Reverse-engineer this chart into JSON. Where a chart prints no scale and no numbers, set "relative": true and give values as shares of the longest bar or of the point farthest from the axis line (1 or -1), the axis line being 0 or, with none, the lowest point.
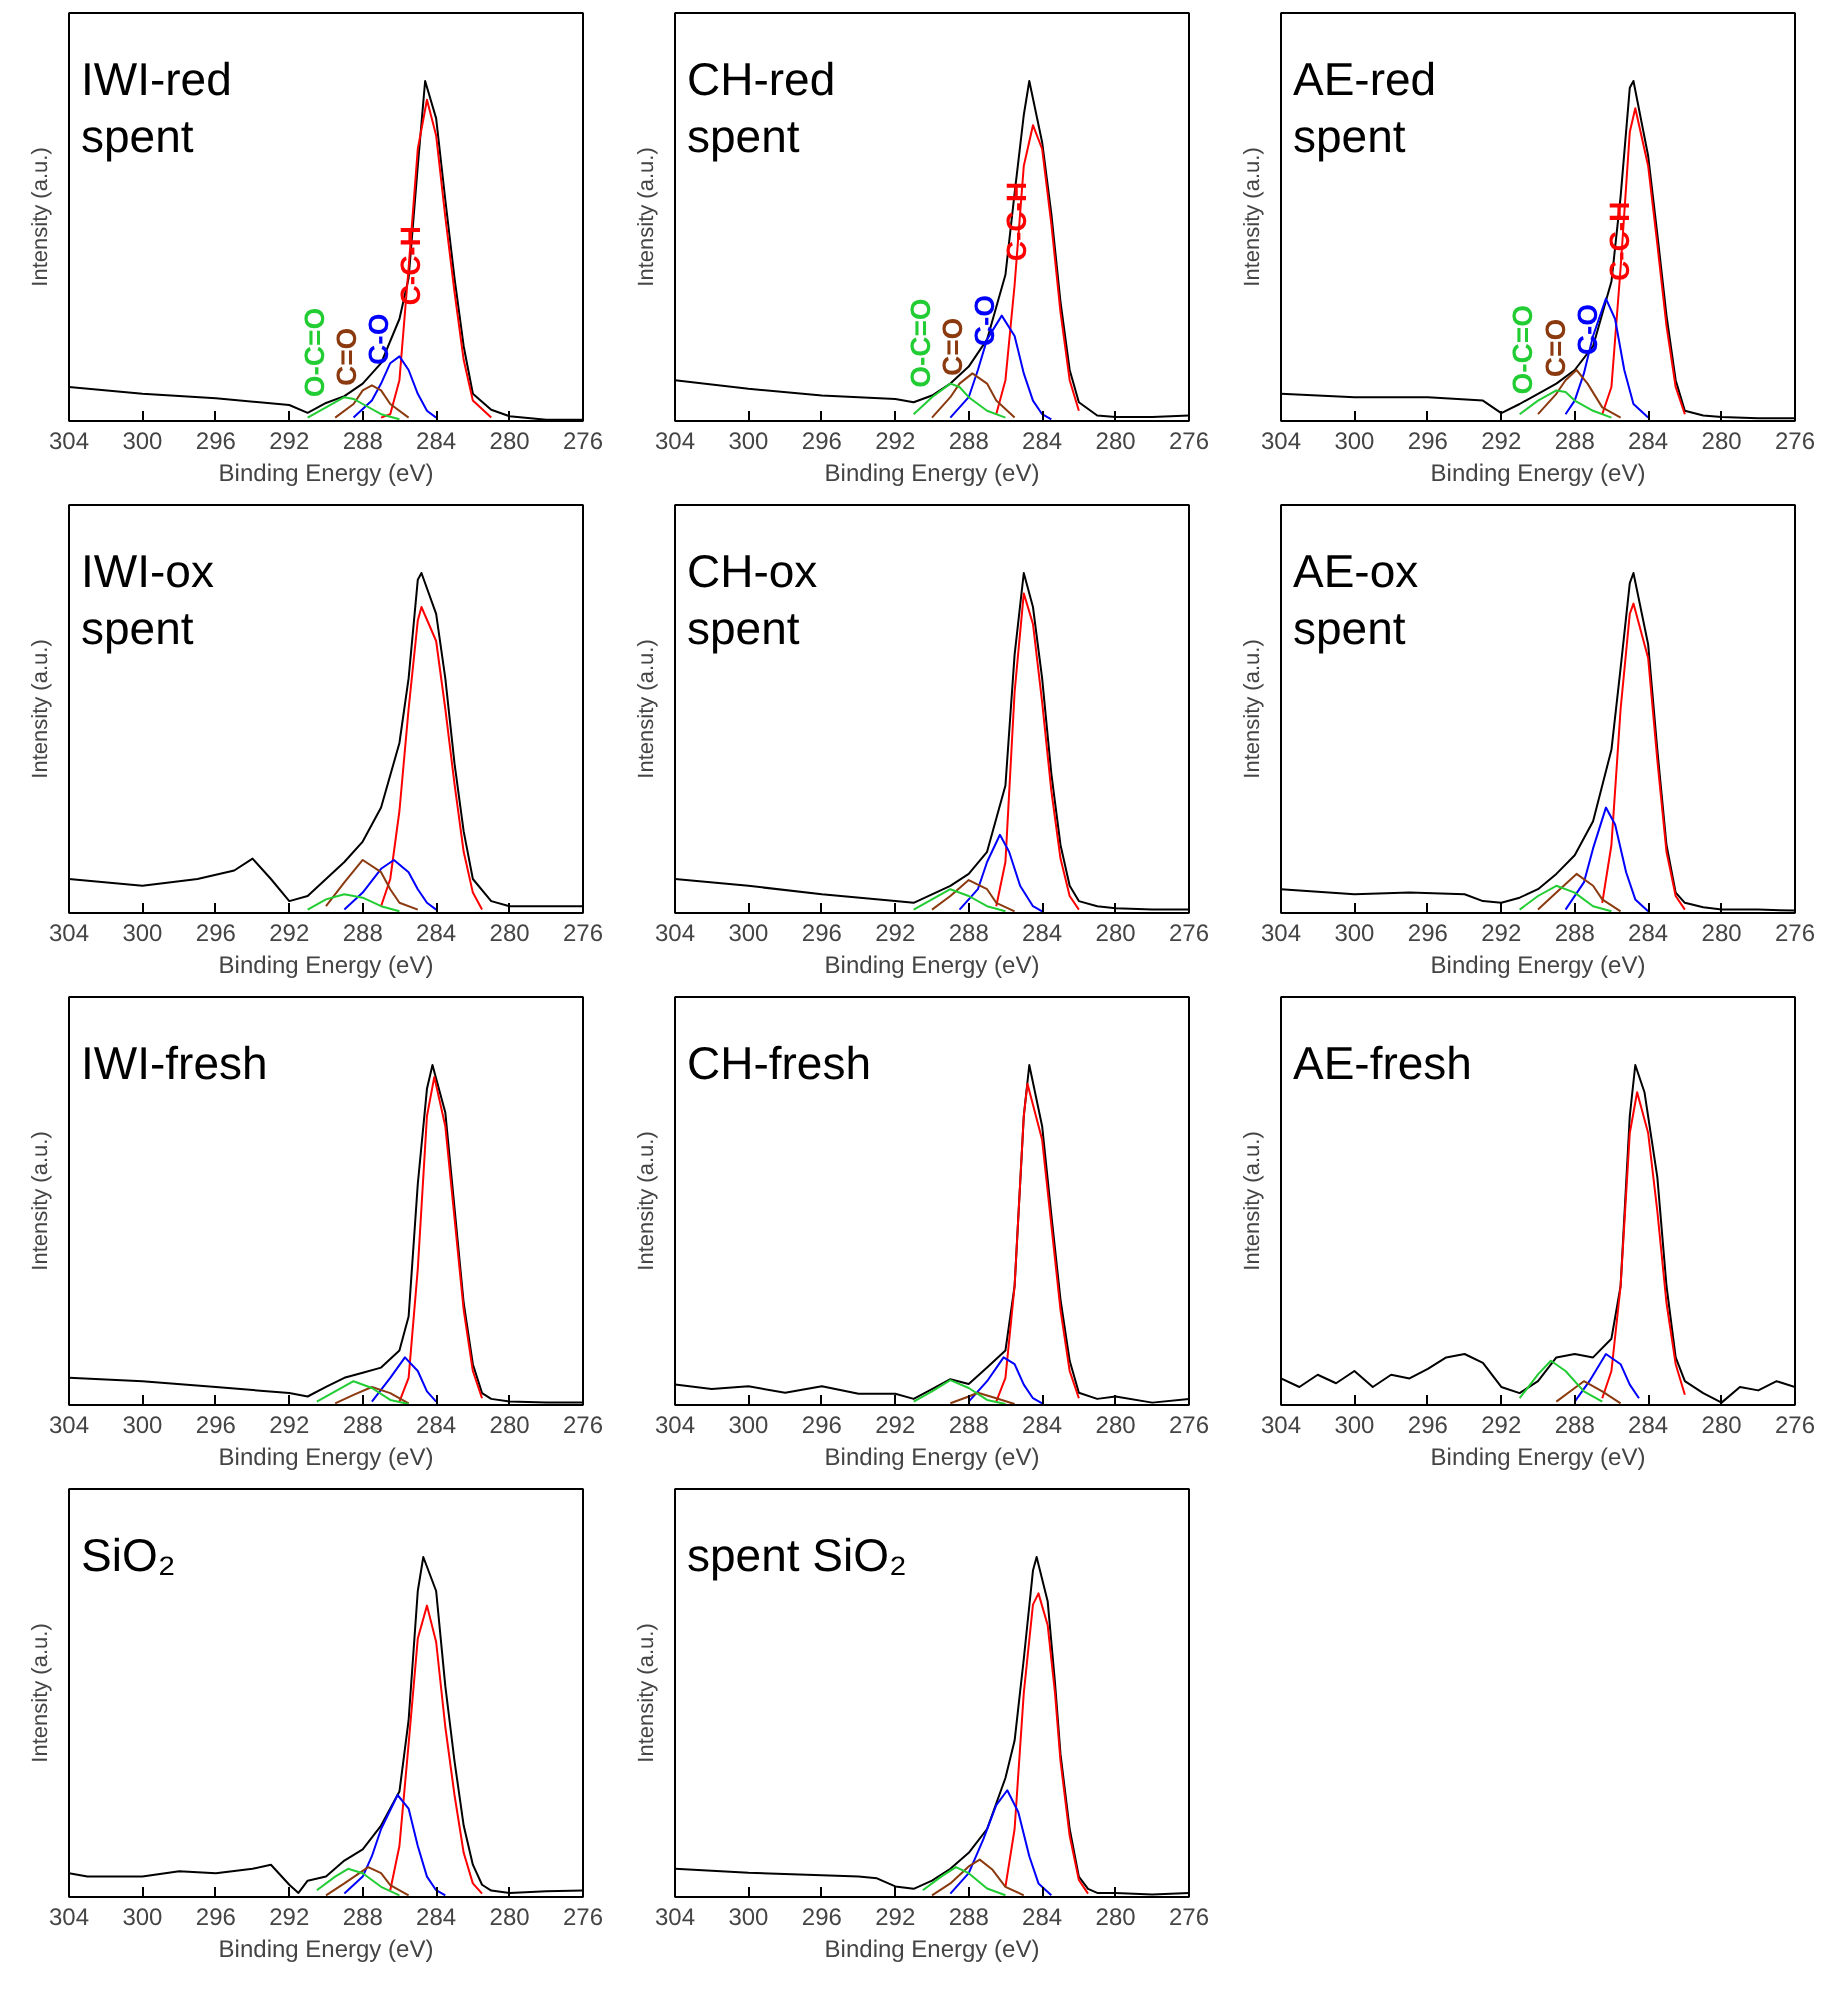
{
  "chart_data": [
    {
      "type": "line",
      "title": "IWI-red\nspent",
      "xlabel": "Binding Energy (eV)",
      "ylabel": "Intensity (a.u.)",
      "xlim": [
        304,
        276
      ],
      "xticks": [
        304,
        300,
        296,
        292,
        288,
        284,
        280,
        276
      ],
      "relative": true,
      "tick_labels": "x",
      "series": [
        {
          "color": "#000000",
          "x": [
            304,
            300,
            296,
            292,
            291,
            290,
            289,
            288,
            287,
            286,
            285.5,
            285,
            284.6,
            284,
            283.5,
            283,
            282.5,
            282,
            281,
            280,
            278,
            276
          ],
          "values": [
            0.1,
            0.08,
            0.067,
            0.047,
            0.024,
            0.053,
            0.073,
            0.11,
            0.17,
            0.3,
            0.42,
            0.75,
            1.0,
            0.89,
            0.65,
            0.42,
            0.22,
            0.08,
            0.033,
            0.014,
            0.004,
            0.004
          ]
        },
        {
          "name": "C-C-H",
          "color": "#ff0000",
          "x": [
            287,
            286.5,
            286,
            285.5,
            285,
            284.5,
            284,
            283.5,
            283,
            282.5,
            282,
            281
          ],
          "values": [
            0.01,
            0.02,
            0.12,
            0.45,
            0.8,
            0.945,
            0.84,
            0.6,
            0.38,
            0.18,
            0.06,
            0.01
          ]
        },
        {
          "name": "C-O",
          "color": "#0000ff",
          "x": [
            288.5,
            287.5,
            287,
            286.5,
            286,
            285.5,
            285,
            284.5,
            284
          ],
          "values": [
            0.01,
            0.06,
            0.11,
            0.17,
            0.19,
            0.15,
            0.08,
            0.03,
            0.01
          ]
        },
        {
          "name": "C=O",
          "color": "#8b3a0f",
          "x": [
            289.5,
            288.5,
            288,
            287.5,
            287,
            286.5,
            285.5
          ],
          "values": [
            0.01,
            0.05,
            0.09,
            0.105,
            0.09,
            0.05,
            0.01
          ]
        },
        {
          "name": "O-C=O",
          "color": "#22cc33",
          "x": [
            291,
            290,
            289,
            288.5,
            288,
            287,
            286
          ],
          "values": [
            0.01,
            0.04,
            0.07,
            0.065,
            0.05,
            0.02,
            0.005
          ]
        }
      ]
    },
    {
      "type": "line",
      "title": "CH-red\nspent",
      "xlabel": "Binding Energy (eV)",
      "ylabel": "Intensity (a.u.)",
      "xlim": [
        304,
        276
      ],
      "xticks": [
        304,
        300,
        296,
        292,
        288,
        284,
        280,
        276
      ],
      "relative": true,
      "tick_labels": "x",
      "series": [
        {
          "color": "#000000",
          "x": [
            304,
            300,
            296,
            292,
            291,
            290,
            289,
            288,
            287,
            286,
            285.5,
            285,
            284.7,
            284,
            283.5,
            283,
            282.5,
            282,
            281,
            280,
            278,
            276
          ],
          "values": [
            0.12,
            0.095,
            0.075,
            0.065,
            0.055,
            0.075,
            0.11,
            0.16,
            0.24,
            0.43,
            0.67,
            0.9,
            1.0,
            0.82,
            0.61,
            0.35,
            0.15,
            0.055,
            0.016,
            0.012,
            0.012,
            0.016
          ]
        },
        {
          "name": "C-C-H",
          "color": "#ff0000",
          "x": [
            286.5,
            286,
            285.5,
            285,
            284.5,
            284,
            283.5,
            283,
            282.5,
            282
          ],
          "values": [
            0.02,
            0.12,
            0.4,
            0.75,
            0.87,
            0.8,
            0.58,
            0.32,
            0.12,
            0.03
          ]
        },
        {
          "name": "C-O",
          "color": "#0000ff",
          "x": [
            289,
            288,
            287.5,
            287,
            286.2,
            285.5,
            285,
            284.5,
            284,
            283.5
          ],
          "values": [
            0.01,
            0.07,
            0.15,
            0.24,
            0.31,
            0.25,
            0.14,
            0.06,
            0.02,
            0.005
          ]
        },
        {
          "name": "C=O",
          "color": "#8b3a0f",
          "x": [
            290,
            289,
            288.5,
            287.8,
            287,
            286.5,
            285.5
          ],
          "values": [
            0.01,
            0.07,
            0.11,
            0.14,
            0.11,
            0.06,
            0.01
          ]
        },
        {
          "name": "O-C=O",
          "color": "#22cc33",
          "x": [
            291,
            290,
            289,
            288.5,
            288,
            287,
            286
          ],
          "values": [
            0.02,
            0.07,
            0.11,
            0.1,
            0.07,
            0.03,
            0.01
          ]
        }
      ]
    },
    {
      "type": "line",
      "title": "AE-red\nspent",
      "xlabel": "Binding Energy (eV)",
      "ylabel": "Intensity (a.u.)",
      "xlim": [
        304,
        276
      ],
      "xticks": [
        304,
        300,
        296,
        292,
        288,
        284,
        280,
        276
      ],
      "relative": true,
      "tick_labels": "x",
      "series": [
        {
          "color": "#000000",
          "x": [
            304,
            300,
            296,
            293,
            292,
            291,
            290,
            289,
            288,
            287,
            286,
            285.5,
            285,
            284.8,
            284,
            283.5,
            283,
            282.5,
            282,
            281,
            280,
            278,
            276
          ],
          "values": [
            0.08,
            0.07,
            0.07,
            0.06,
            0.023,
            0.05,
            0.08,
            0.11,
            0.15,
            0.22,
            0.41,
            0.66,
            0.98,
            1.0,
            0.78,
            0.55,
            0.31,
            0.12,
            0.03,
            0.016,
            0.012,
            0.008,
            0.008
          ]
        },
        {
          "name": "C-C-H",
          "color": "#ff0000",
          "x": [
            286.5,
            286,
            285.5,
            285,
            284.7,
            284,
            283.5,
            283,
            282.5,
            282
          ],
          "values": [
            0.02,
            0.1,
            0.45,
            0.85,
            0.92,
            0.75,
            0.52,
            0.28,
            0.1,
            0.02
          ]
        },
        {
          "name": "C-O",
          "color": "#0000ff",
          "x": [
            288.5,
            288,
            287.5,
            287,
            286.3,
            285.8,
            285.3,
            284.8,
            284
          ],
          "values": [
            0.02,
            0.06,
            0.14,
            0.25,
            0.36,
            0.3,
            0.15,
            0.05,
            0.01
          ]
        },
        {
          "name": "C=O",
          "color": "#8b3a0f",
          "x": [
            290,
            289,
            288.5,
            287.9,
            287.3,
            286.5,
            285.5
          ],
          "values": [
            0.02,
            0.08,
            0.12,
            0.15,
            0.11,
            0.04,
            0.01
          ]
        },
        {
          "name": "O-C=O",
          "color": "#22cc33",
          "x": [
            291,
            290,
            289,
            288.5,
            288,
            287,
            286
          ],
          "values": [
            0.02,
            0.06,
            0.09,
            0.085,
            0.06,
            0.03,
            0.01
          ]
        }
      ]
    },
    {
      "type": "line",
      "title": "IWI-ox\nspent",
      "xlabel": "Binding Energy (eV)",
      "ylabel": "Intensity (a.u.)",
      "xlim": [
        304,
        276
      ],
      "xticks": [
        304,
        300,
        296,
        292,
        288,
        284,
        280,
        276
      ],
      "relative": true,
      "tick_labels": "x",
      "series": [
        {
          "color": "#000000",
          "x": [
            304,
            300,
            297,
            295,
            294,
            293,
            292,
            291,
            290,
            289,
            288,
            287,
            286,
            285.5,
            285,
            284.8,
            284,
            283.5,
            283,
            282.5,
            282,
            281,
            280,
            278,
            276
          ],
          "values": [
            0.1,
            0.08,
            0.1,
            0.125,
            0.16,
            0.1,
            0.035,
            0.05,
            0.1,
            0.15,
            0.21,
            0.31,
            0.5,
            0.69,
            0.98,
            1.0,
            0.88,
            0.69,
            0.44,
            0.24,
            0.1,
            0.035,
            0.02,
            0.02,
            0.02
          ]
        },
        {
          "color": "#ff0000",
          "x": [
            287,
            286.5,
            286,
            285.5,
            285,
            284.8,
            284,
            283.5,
            283,
            282.5,
            282,
            281.5
          ],
          "values": [
            0.02,
            0.1,
            0.3,
            0.6,
            0.86,
            0.9,
            0.8,
            0.6,
            0.38,
            0.18,
            0.06,
            0.01
          ]
        },
        {
          "color": "#0000ff",
          "x": [
            289,
            288,
            287,
            286.3,
            285.5,
            285,
            284.5,
            284
          ],
          "values": [
            0.01,
            0.06,
            0.13,
            0.156,
            0.12,
            0.07,
            0.03,
            0.01
          ]
        },
        {
          "color": "#8b3a0f",
          "x": [
            290,
            289,
            288,
            287,
            286.5,
            286,
            285
          ],
          "values": [
            0.02,
            0.09,
            0.156,
            0.12,
            0.07,
            0.03,
            0.01
          ]
        },
        {
          "color": "#22cc33",
          "x": [
            291,
            290,
            289,
            288,
            287,
            286
          ],
          "values": [
            0.01,
            0.04,
            0.055,
            0.045,
            0.02,
            0.005
          ]
        }
      ]
    },
    {
      "type": "line",
      "title": "CH-ox\nspent",
      "xlabel": "Binding Energy (eV)",
      "ylabel": "Intensity (a.u.)",
      "xlim": [
        304,
        276
      ],
      "xticks": [
        304,
        300,
        296,
        292,
        288,
        284,
        280,
        276
      ],
      "relative": true,
      "tick_labels": "x",
      "series": [
        {
          "color": "#000000",
          "x": [
            304,
            300,
            296,
            292,
            291,
            290,
            289,
            288,
            287,
            286,
            285.5,
            285,
            284.5,
            284,
            283.5,
            283,
            282.5,
            282,
            281,
            280,
            278,
            276
          ],
          "values": [
            0.1,
            0.08,
            0.055,
            0.035,
            0.03,
            0.055,
            0.08,
            0.115,
            0.18,
            0.375,
            0.76,
            1.0,
            0.9,
            0.69,
            0.41,
            0.2,
            0.08,
            0.035,
            0.02,
            0.014,
            0.01,
            0.01
          ]
        },
        {
          "color": "#ff0000",
          "x": [
            286.5,
            286,
            285.5,
            285,
            284.5,
            284,
            283.5,
            283,
            282.5,
            282
          ],
          "values": [
            0.02,
            0.15,
            0.65,
            0.94,
            0.85,
            0.62,
            0.36,
            0.16,
            0.05,
            0.01
          ]
        },
        {
          "color": "#0000ff",
          "x": [
            288.5,
            287.5,
            287,
            286.3,
            285.8,
            285.2,
            284.5,
            284
          ],
          "values": [
            0.01,
            0.07,
            0.15,
            0.23,
            0.18,
            0.08,
            0.02,
            0.005
          ]
        },
        {
          "color": "#8b3a0f",
          "x": [
            290,
            289,
            288,
            287,
            286.5,
            285.5
          ],
          "values": [
            0.01,
            0.05,
            0.097,
            0.07,
            0.03,
            0.005
          ]
        },
        {
          "color": "#22cc33",
          "x": [
            291,
            290,
            289,
            288,
            287,
            286
          ],
          "values": [
            0.01,
            0.04,
            0.07,
            0.05,
            0.02,
            0.005
          ]
        }
      ]
    },
    {
      "type": "line",
      "title": "AE-ox\nspent",
      "xlabel": "Binding Energy (eV)",
      "ylabel": "Intensity (a.u.)",
      "xlim": [
        304,
        276
      ],
      "xticks": [
        304,
        300,
        296,
        292,
        288,
        284,
        280,
        276
      ],
      "relative": true,
      "tick_labels": "x",
      "series": [
        {
          "color": "#000000",
          "x": [
            304,
            300,
            297,
            294,
            293,
            292,
            291,
            290,
            289,
            288,
            287,
            286,
            285.5,
            285,
            284.8,
            284,
            283.5,
            283,
            282.5,
            282,
            281,
            280,
            278,
            276
          ],
          "values": [
            0.07,
            0.055,
            0.06,
            0.055,
            0.035,
            0.03,
            0.045,
            0.07,
            0.115,
            0.17,
            0.27,
            0.48,
            0.72,
            0.97,
            1.0,
            0.79,
            0.48,
            0.2,
            0.06,
            0.03,
            0.017,
            0.01,
            0.01,
            0.007
          ]
        },
        {
          "color": "#ff0000",
          "x": [
            286.5,
            286,
            285.5,
            285,
            284.8,
            284,
            283.5,
            283,
            282.5,
            282
          ],
          "values": [
            0.03,
            0.2,
            0.6,
            0.88,
            0.91,
            0.75,
            0.45,
            0.18,
            0.05,
            0.01
          ]
        },
        {
          "color": "#0000ff",
          "x": [
            288.5,
            287.5,
            287,
            286.3,
            285.8,
            285.2,
            284.7,
            284
          ],
          "values": [
            0.01,
            0.09,
            0.19,
            0.31,
            0.26,
            0.12,
            0.04,
            0.005
          ]
        },
        {
          "color": "#8b3a0f",
          "x": [
            290,
            289,
            287.9,
            287,
            286.5,
            285.5
          ],
          "values": [
            0.01,
            0.06,
            0.115,
            0.08,
            0.04,
            0.005
          ]
        },
        {
          "color": "#22cc33",
          "x": [
            291,
            290,
            289,
            288,
            287,
            286
          ],
          "values": [
            0.01,
            0.05,
            0.08,
            0.06,
            0.02,
            0.005
          ]
        }
      ]
    },
    {
      "type": "line",
      "title": "IWI-fresh",
      "xlabel": "Binding Energy (eV)",
      "ylabel": "Intensity (a.u.)",
      "xlim": [
        304,
        276
      ],
      "xticks": [
        304,
        300,
        296,
        292,
        288,
        284,
        280,
        276
      ],
      "relative": true,
      "tick_labels": "x",
      "series": [
        {
          "color": "#000000",
          "x": [
            304,
            300,
            296,
            292,
            291,
            290,
            289,
            288,
            287,
            286,
            285.5,
            285,
            284.5,
            284.2,
            283.5,
            283,
            282.5,
            282,
            281.5,
            281,
            280,
            278,
            276
          ],
          "values": [
            0.08,
            0.07,
            0.053,
            0.035,
            0.025,
            0.053,
            0.08,
            0.095,
            0.11,
            0.16,
            0.26,
            0.65,
            0.93,
            1.0,
            0.86,
            0.58,
            0.3,
            0.12,
            0.035,
            0.018,
            0.01,
            0.007,
            0.007
          ]
        },
        {
          "color": "#ff0000",
          "x": [
            286,
            285.5,
            285,
            284.5,
            284.1,
            283.5,
            283,
            282.5,
            282,
            281.5
          ],
          "values": [
            0.01,
            0.08,
            0.4,
            0.85,
            0.965,
            0.82,
            0.55,
            0.28,
            0.1,
            0.02
          ]
        },
        {
          "color": "#0000ff",
          "x": [
            287.5,
            286.5,
            285.7,
            285,
            284.5,
            284
          ],
          "values": [
            0.01,
            0.08,
            0.14,
            0.1,
            0.04,
            0.01
          ]
        },
        {
          "color": "#8b3a0f",
          "x": [
            289.5,
            288.5,
            287.5,
            286.5,
            285.5
          ],
          "values": [
            0.005,
            0.03,
            0.053,
            0.035,
            0.005
          ]
        },
        {
          "color": "#22cc33",
          "x": [
            290.5,
            289.5,
            288.5,
            287.5,
            286.5,
            285.5
          ],
          "values": [
            0.01,
            0.04,
            0.07,
            0.05,
            0.015,
            0.003
          ]
        }
      ]
    },
    {
      "type": "line",
      "title": "CH-fresh",
      "xlabel": "Binding Energy (eV)",
      "ylabel": "Intensity (a.u.)",
      "xlim": [
        304,
        276
      ],
      "xticks": [
        304,
        300,
        296,
        292,
        288,
        284,
        280,
        276
      ],
      "relative": true,
      "tick_labels": "x",
      "series": [
        {
          "color": "#000000",
          "x": [
            304,
            302,
            300,
            298,
            296,
            294,
            292,
            291,
            290,
            289,
            288,
            287,
            286,
            285.5,
            285,
            284.7,
            284,
            283.5,
            283,
            282.5,
            282,
            281,
            280,
            278,
            276
          ],
          "values": [
            0.06,
            0.047,
            0.055,
            0.036,
            0.055,
            0.033,
            0.033,
            0.018,
            0.047,
            0.076,
            0.062,
            0.11,
            0.16,
            0.35,
            0.85,
            1.0,
            0.82,
            0.56,
            0.31,
            0.13,
            0.036,
            0.018,
            0.025,
            0.007,
            0.018
          ]
        },
        {
          "color": "#ff0000",
          "x": [
            286.5,
            286,
            285.5,
            285,
            284.8,
            284,
            283.5,
            283,
            282.5,
            282
          ],
          "values": [
            0.01,
            0.08,
            0.35,
            0.85,
            0.945,
            0.78,
            0.53,
            0.28,
            0.1,
            0.02
          ]
        },
        {
          "color": "#0000ff",
          "x": [
            288,
            287,
            286.1,
            285.5,
            285,
            284.5,
            284
          ],
          "values": [
            0.01,
            0.07,
            0.14,
            0.12,
            0.06,
            0.02,
            0.005
          ]
        },
        {
          "color": "#8b3a0f",
          "x": [
            289,
            288,
            287.5,
            286.5,
            285.5
          ],
          "values": [
            0.005,
            0.025,
            0.036,
            0.02,
            0.003
          ]
        },
        {
          "color": "#22cc33",
          "x": [
            291,
            290,
            289,
            288,
            287,
            286
          ],
          "values": [
            0.01,
            0.04,
            0.073,
            0.05,
            0.015,
            0.003
          ]
        }
      ]
    },
    {
      "type": "line",
      "title": "AE-fresh",
      "xlabel": "Binding Energy (eV)",
      "ylabel": "Intensity (a.u.)",
      "xlim": [
        304,
        276
      ],
      "xticks": [
        304,
        300,
        296,
        292,
        288,
        284,
        280,
        276
      ],
      "relative": true,
      "tick_labels": "x",
      "series": [
        {
          "color": "#000000",
          "x": [
            304,
            303,
            302,
            301,
            300,
            299,
            298,
            297,
            296,
            295,
            294,
            293,
            292,
            291,
            290,
            289,
            288,
            287,
            286,
            285.5,
            285,
            284.7,
            284.2,
            283.5,
            283,
            282.5,
            282,
            281,
            280,
            279,
            278,
            277,
            276
          ],
          "values": [
            0.078,
            0.053,
            0.089,
            0.064,
            0.1,
            0.053,
            0.089,
            0.078,
            0.106,
            0.14,
            0.15,
            0.124,
            0.053,
            0.035,
            0.07,
            0.14,
            0.15,
            0.14,
            0.195,
            0.35,
            0.85,
            1.0,
            0.92,
            0.67,
            0.35,
            0.14,
            0.07,
            0.035,
            0.007,
            0.053,
            0.043,
            0.07,
            0.053
          ]
        },
        {
          "color": "#ff0000",
          "x": [
            286.5,
            286,
            285.5,
            285,
            284.6,
            284,
            283.5,
            283,
            282.5,
            282
          ],
          "values": [
            0.02,
            0.1,
            0.35,
            0.8,
            0.92,
            0.8,
            0.57,
            0.3,
            0.12,
            0.03
          ]
        },
        {
          "color": "#0000ff",
          "x": [
            288,
            287.2,
            286.3,
            285.5,
            285,
            284.5
          ],
          "values": [
            0.01,
            0.07,
            0.15,
            0.12,
            0.06,
            0.02
          ]
        },
        {
          "color": "#8b3a0f",
          "x": [
            289,
            288,
            287.5,
            286.5,
            285.5
          ],
          "values": [
            0.01,
            0.05,
            0.07,
            0.04,
            0.005
          ]
        },
        {
          "color": "#22cc33",
          "x": [
            291,
            290,
            289.3,
            288.5,
            287.5,
            286.5
          ],
          "values": [
            0.02,
            0.09,
            0.13,
            0.1,
            0.04,
            0.01
          ]
        }
      ]
    },
    {
      "type": "line",
      "title": "SiO₂",
      "xlabel": "Binding Energy (eV)",
      "ylabel": "Intensity (a.u.)",
      "xlim": [
        304,
        276
      ],
      "xticks": [
        304,
        300,
        296,
        292,
        288,
        284,
        280,
        276
      ],
      "relative": true,
      "tick_labels": "x",
      "series": [
        {
          "color": "#000000",
          "x": [
            304,
            303,
            302,
            300,
            298,
            296,
            294,
            293,
            292,
            291.5,
            291,
            290,
            289,
            288,
            287,
            286,
            285.5,
            285,
            284.7,
            284,
            283.5,
            283,
            282.5,
            282,
            281.5,
            281,
            280,
            278,
            276
          ],
          "values": [
            0.07,
            0.06,
            0.06,
            0.06,
            0.076,
            0.07,
            0.083,
            0.095,
            0.036,
            0.012,
            0.048,
            0.06,
            0.107,
            0.14,
            0.21,
            0.31,
            0.52,
            0.9,
            1.0,
            0.9,
            0.62,
            0.4,
            0.21,
            0.095,
            0.036,
            0.019,
            0.012,
            0.017,
            0.019
          ]
        },
        {
          "color": "#ff0000",
          "x": [
            286.5,
            286,
            285.5,
            285,
            284.5,
            284,
            283.5,
            283,
            282.5,
            282,
            281.5
          ],
          "values": [
            0.02,
            0.15,
            0.45,
            0.76,
            0.857,
            0.75,
            0.5,
            0.3,
            0.13,
            0.04,
            0.01
          ]
        },
        {
          "color": "#0000ff",
          "x": [
            289,
            288,
            287.5,
            287,
            286.1,
            285.5,
            285,
            284.5,
            284,
            283.5
          ],
          "values": [
            0.01,
            0.06,
            0.12,
            0.2,
            0.3,
            0.26,
            0.15,
            0.06,
            0.02,
            0.005
          ]
        },
        {
          "color": "#8b3a0f",
          "x": [
            290,
            289,
            287.7,
            287,
            286.5,
            285.5
          ],
          "values": [
            0.005,
            0.04,
            0.088,
            0.07,
            0.035,
            0.005
          ]
        },
        {
          "color": "#22cc33",
          "x": [
            290.5,
            289.5,
            288.8,
            288,
            287,
            286
          ],
          "values": [
            0.02,
            0.06,
            0.083,
            0.07,
            0.03,
            0.005
          ]
        }
      ]
    },
    {
      "type": "line",
      "title": "spent SiO₂",
      "xlabel": "Binding Energy (eV)",
      "ylabel": "Intensity (a.u.)",
      "xlim": [
        304,
        276
      ],
      "xticks": [
        304,
        300,
        296,
        292,
        288,
        284,
        280,
        276
      ],
      "relative": true,
      "tick_labels": "x",
      "series": [
        {
          "color": "#000000",
          "x": [
            304,
            300,
            296,
            294,
            293,
            292,
            291,
            290,
            289,
            288,
            287,
            286,
            285.5,
            285,
            284.5,
            284.3,
            283.7,
            283.3,
            283,
            282.5,
            282,
            281.5,
            281,
            280,
            278,
            276
          ],
          "values": [
            0.083,
            0.071,
            0.064,
            0.06,
            0.055,
            0.031,
            0.024,
            0.048,
            0.083,
            0.13,
            0.2,
            0.35,
            0.46,
            0.7,
            0.96,
            1.0,
            0.87,
            0.63,
            0.42,
            0.2,
            0.06,
            0.024,
            0.012,
            0.012,
            0.007,
            0.012
          ]
        },
        {
          "color": "#ff0000",
          "x": [
            286,
            285.5,
            285,
            284.5,
            284.2,
            283.7,
            283.3,
            283,
            282.5,
            282,
            281.5
          ],
          "values": [
            0.03,
            0.2,
            0.6,
            0.86,
            0.893,
            0.8,
            0.6,
            0.4,
            0.18,
            0.05,
            0.01
          ]
        },
        {
          "color": "#0000ff",
          "x": [
            289,
            288,
            287.2,
            286.5,
            285.9,
            285.3,
            284.7,
            284.2,
            283.5
          ],
          "values": [
            0.01,
            0.07,
            0.17,
            0.27,
            0.314,
            0.25,
            0.12,
            0.04,
            0.005
          ]
        },
        {
          "color": "#8b3a0f",
          "x": [
            290,
            289,
            288,
            287.4,
            286.7,
            286,
            285
          ],
          "values": [
            0.005,
            0.04,
            0.09,
            0.11,
            0.08,
            0.03,
            0.005
          ]
        },
        {
          "color": "#22cc33",
          "x": [
            290.5,
            289.5,
            288.7,
            288,
            287,
            286
          ],
          "values": [
            0.02,
            0.06,
            0.088,
            0.07,
            0.025,
            0.005
          ]
        }
      ]
    }
  ]
}
